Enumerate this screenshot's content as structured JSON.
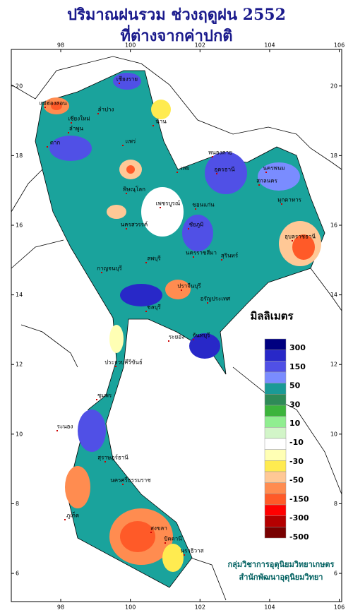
{
  "header": {
    "title": "ปริมาณฝนรวม ช่วงฤดูฝน 2552",
    "subtitle": "ที่ต่างจากค่าปกติ"
  },
  "map": {
    "lon_range": [
      96.58,
      106.07
    ],
    "lat_range": [
      21.05,
      5.19
    ],
    "lon_ticks": [
      98,
      100,
      102,
      104,
      106
    ],
    "lat_ticks": [
      20,
      18,
      16,
      14,
      12,
      10,
      8,
      6
    ],
    "places": [
      "เชียงราย",
      "แม่ฮ่องสอน",
      "น่าน",
      "เชียงใหม่",
      "ลำพูน",
      "ลำปาง",
      "แพร่",
      "ตาก",
      "เลย",
      "อุดรธานี",
      "หนองคาย",
      "นครพนม",
      "สกลนคร",
      "มุกดาหาร",
      "พิษณุโลก",
      "เพชรบูรณ์",
      "ขอนแก่น",
      "นครสวรรค์",
      "ชัยภูมิ",
      "อุบลราชธานี",
      "นครราชสีมา",
      "สุรินทร์",
      "ลพบุรี",
      "กาญจนบุรี",
      "ปราจีนบุรี",
      "อรัญประเทศ",
      "ชลบุรี",
      "ระยอง",
      "จันทบุรี",
      "ประจวบคีรีขันธ์",
      "ชุมพร",
      "ระนอง",
      "สุราษฎร์ธานี",
      "นครศรีธรรมราช",
      "ภูเก็ต",
      "สงขลา",
      "ปัตตานี",
      "นราธิวาส"
    ]
  },
  "legend": {
    "title": "มิลลิเมตร",
    "colors": [
      "#000080",
      "#2828c8",
      "#5050e6",
      "#7a8cff",
      "#1a9a96",
      "#2e8b57",
      "#3cb43c",
      "#90ee90",
      "#d2f5c8",
      "#ffffff",
      "#ffffb4",
      "#ffeb50",
      "#ffc896",
      "#ff8c50",
      "#ff5a28",
      "#ff0000",
      "#b40000",
      "#780000"
    ],
    "labels": [
      300,
      150,
      50,
      30,
      10,
      -10,
      -30,
      -50,
      -150,
      -300,
      -500
    ]
  },
  "credit": [
    "กลุ่มวิชาการอุตุนิยมวิทยาเกษตร",
    "สำนักพัฒนาอุตุนิยมวิทยา"
  ]
}
